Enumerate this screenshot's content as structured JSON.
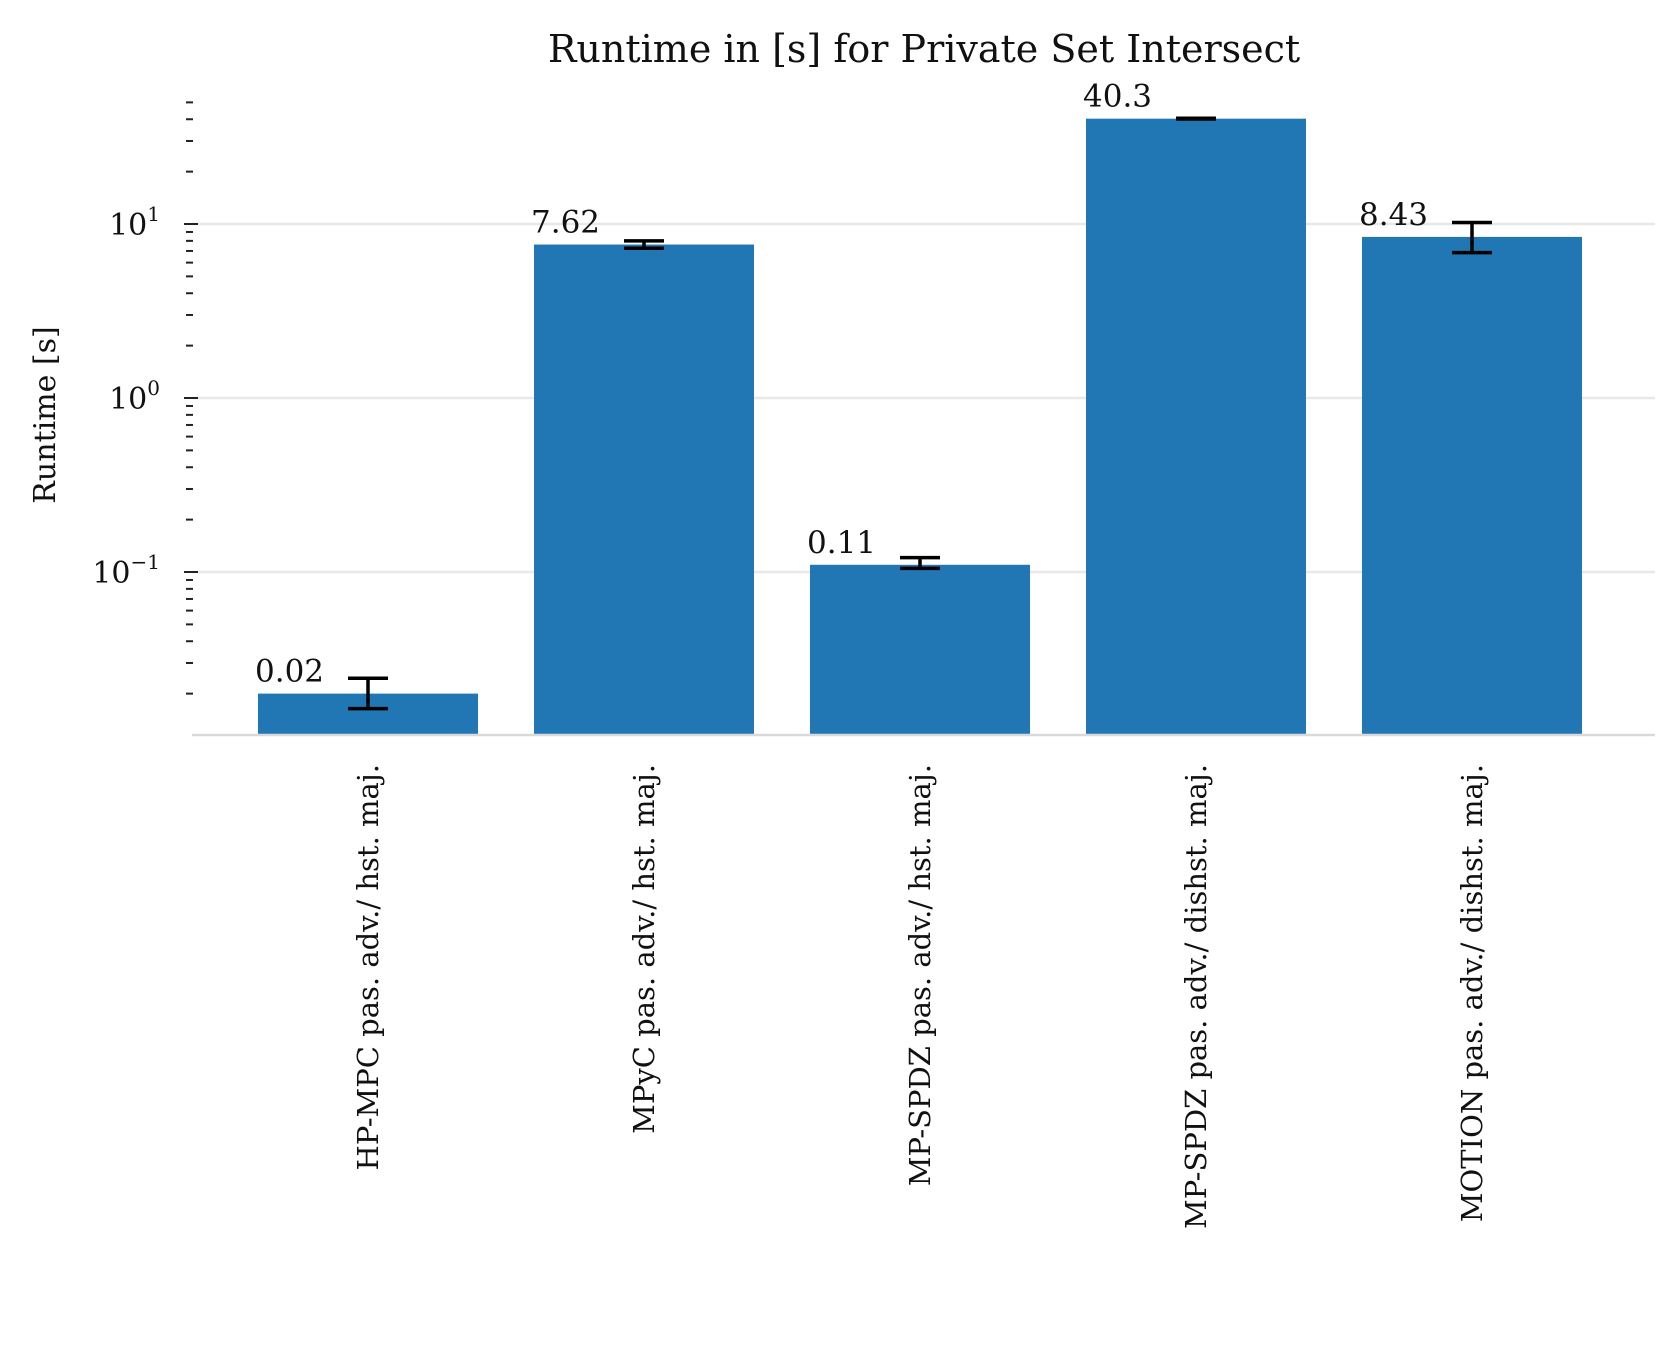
{
  "chart_data": {
    "type": "bar",
    "title": "Runtime in [s] for Private Set Intersect",
    "xlabel": "",
    "ylabel": "Runtime [s]",
    "yscale": "log",
    "ylim": [
      0.01,
      60
    ],
    "ytick_values": [
      0.1,
      1,
      10
    ],
    "ytick_labels": [
      {
        "base": "10",
        "exp": "−1"
      },
      {
        "base": "10",
        "exp": "0"
      },
      {
        "base": "10",
        "exp": "1"
      }
    ],
    "grid": "horizontal",
    "color": "#2077b4",
    "categories": [
      "HP-MPC pas. adv./ hst. maj.",
      "MPyC pas. adv./ hst. maj.",
      "MP-SPDZ pas. adv./ hst. maj.",
      "MP-SPDZ pas. adv./ dishst. maj.",
      "MOTION pas. adv./ dishst. maj."
    ],
    "values": [
      0.02,
      7.62,
      0.11,
      40.3,
      8.43
    ],
    "value_labels": [
      "0.02",
      "7.62",
      "0.11",
      "40.3",
      "8.43"
    ],
    "error_low": [
      0.0164,
      7.25,
      0.105,
      40.1,
      6.85
    ],
    "error_high": [
      0.0245,
      8.0,
      0.121,
      40.5,
      10.2
    ]
  }
}
